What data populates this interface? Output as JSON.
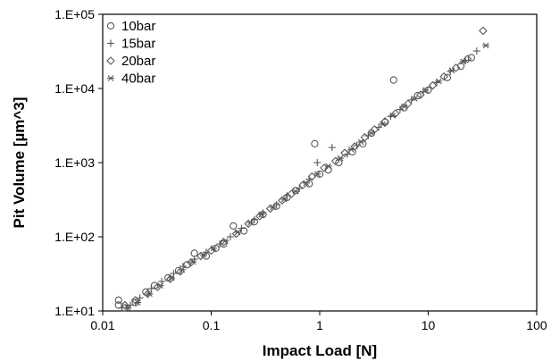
{
  "chart_data": {
    "type": "scatter",
    "title": "",
    "xlabel": "Impact Load [N]",
    "ylabel": "Pit Volume [µm^3]",
    "xscale": "log",
    "yscale": "log",
    "xlim": [
      0.01,
      100
    ],
    "ylim": [
      10,
      100000
    ],
    "x_tick_labels": [
      "0.01",
      "0.1",
      "1",
      "10",
      "100"
    ],
    "y_tick_labels": [
      "1.E+01",
      "1.E+02",
      "1.E+03",
      "1.E+04",
      "1.E+05"
    ],
    "grid": false,
    "legend_position": "top-left",
    "marker_color": "#5a5a5a",
    "series": [
      {
        "name": "10bar",
        "marker": "circle",
        "points": [
          [
            0.014,
            12
          ],
          [
            0.014,
            14
          ],
          [
            0.016,
            11
          ],
          [
            0.02,
            13
          ],
          [
            0.025,
            18
          ],
          [
            0.03,
            22
          ],
          [
            0.04,
            28
          ],
          [
            0.05,
            35
          ],
          [
            0.06,
            42
          ],
          [
            0.07,
            60
          ],
          [
            0.09,
            55
          ],
          [
            0.11,
            70
          ],
          [
            0.13,
            80
          ],
          [
            0.16,
            140
          ],
          [
            0.2,
            120
          ],
          [
            0.25,
            160
          ],
          [
            0.3,
            200
          ],
          [
            0.4,
            260
          ],
          [
            0.5,
            340
          ],
          [
            0.6,
            420
          ],
          [
            0.8,
            520
          ],
          [
            0.9,
            1800
          ],
          [
            1.0,
            700
          ],
          [
            1.2,
            800
          ],
          [
            1.5,
            1000
          ],
          [
            2.0,
            1400
          ],
          [
            2.5,
            1800
          ],
          [
            3.0,
            2500
          ],
          [
            4.0,
            3500
          ],
          [
            4.8,
            13000
          ],
          [
            6.0,
            5500
          ],
          [
            8.0,
            8000
          ],
          [
            10.0,
            9500
          ],
          [
            15.0,
            14000
          ],
          [
            20.0,
            20000
          ],
          [
            25.0,
            26000
          ]
        ]
      },
      {
        "name": "15bar",
        "marker": "plus",
        "points": [
          [
            0.015,
            11
          ],
          [
            0.018,
            12
          ],
          [
            0.022,
            15
          ],
          [
            0.028,
            20
          ],
          [
            0.035,
            25
          ],
          [
            0.045,
            32
          ],
          [
            0.055,
            40
          ],
          [
            0.07,
            50
          ],
          [
            0.09,
            62
          ],
          [
            0.12,
            80
          ],
          [
            0.15,
            100
          ],
          [
            0.19,
            130
          ],
          [
            0.25,
            170
          ],
          [
            0.3,
            210
          ],
          [
            0.4,
            270
          ],
          [
            0.5,
            360
          ],
          [
            0.65,
            450
          ],
          [
            0.8,
            600
          ],
          [
            0.95,
            1000
          ],
          [
            1.3,
            1600
          ],
          [
            1.8,
            1300
          ],
          [
            2.2,
            1700
          ],
          [
            2.8,
            2300
          ],
          [
            3.5,
            3000
          ],
          [
            4.5,
            4200
          ],
          [
            5.5,
            5200
          ],
          [
            7.0,
            7000
          ],
          [
            9.0,
            9000
          ],
          [
            12.0,
            12000
          ],
          [
            16.0,
            17000
          ],
          [
            22.0,
            24000
          ],
          [
            28.0,
            32000
          ]
        ]
      },
      {
        "name": "20bar",
        "marker": "diamond",
        "points": [
          [
            0.016,
            12
          ],
          [
            0.02,
            14
          ],
          [
            0.026,
            17
          ],
          [
            0.032,
            21
          ],
          [
            0.042,
            27
          ],
          [
            0.052,
            34
          ],
          [
            0.065,
            45
          ],
          [
            0.08,
            55
          ],
          [
            0.1,
            65
          ],
          [
            0.13,
            85
          ],
          [
            0.17,
            110
          ],
          [
            0.22,
            150
          ],
          [
            0.28,
            190
          ],
          [
            0.35,
            240
          ],
          [
            0.45,
            310
          ],
          [
            0.55,
            380
          ],
          [
            0.7,
            500
          ],
          [
            0.85,
            650
          ],
          [
            1.1,
            850
          ],
          [
            1.4,
            1050
          ],
          [
            1.7,
            1350
          ],
          [
            2.1,
            1650
          ],
          [
            2.6,
            2200
          ],
          [
            3.2,
            2800
          ],
          [
            4.0,
            3600
          ],
          [
            5.0,
            4600
          ],
          [
            6.5,
            6200
          ],
          [
            8.5,
            8200
          ],
          [
            11.0,
            11000
          ],
          [
            14.0,
            14500
          ],
          [
            18.0,
            19000
          ],
          [
            23.0,
            25000
          ],
          [
            32.0,
            60000
          ]
        ]
      },
      {
        "name": "40bar",
        "marker": "asterisk",
        "points": [
          [
            0.017,
            11
          ],
          [
            0.021,
            13
          ],
          [
            0.027,
            17
          ],
          [
            0.034,
            22
          ],
          [
            0.043,
            28
          ],
          [
            0.054,
            36
          ],
          [
            0.068,
            46
          ],
          [
            0.085,
            57
          ],
          [
            0.105,
            70
          ],
          [
            0.135,
            88
          ],
          [
            0.175,
            115
          ],
          [
            0.23,
            155
          ],
          [
            0.29,
            200
          ],
          [
            0.37,
            250
          ],
          [
            0.47,
            320
          ],
          [
            0.6,
            410
          ],
          [
            0.75,
            530
          ],
          [
            0.95,
            700
          ],
          [
            1.2,
            900
          ],
          [
            1.55,
            1150
          ],
          [
            1.95,
            1500
          ],
          [
            2.4,
            1900
          ],
          [
            3.0,
            2500
          ],
          [
            3.8,
            3300
          ],
          [
            4.7,
            4300
          ],
          [
            6.0,
            5700
          ],
          [
            7.5,
            7300
          ],
          [
            9.5,
            9500
          ],
          [
            12.5,
            12500
          ],
          [
            16.5,
            17500
          ],
          [
            21.0,
            23000
          ],
          [
            34.0,
            38000
          ]
        ]
      }
    ]
  }
}
